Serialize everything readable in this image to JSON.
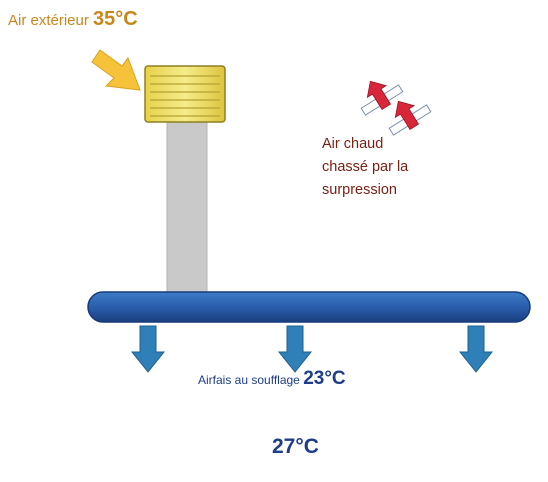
{
  "labels": {
    "outside_air": "Air extérieur",
    "outside_temp": "35°C",
    "hot_air_line1": "Air chaud",
    "hot_air_line2": "chassé par la",
    "hot_air_line3": "surpression",
    "supply_air": "Airfais au  soufflage",
    "supply_temp": "23°C",
    "inside_temp": "27°C"
  },
  "colors": {
    "roof_hot": "#e8321e",
    "mid_warm": "#f7c21a",
    "cool_top": "#7fd3d0",
    "cool_blue": "#2fb4ea",
    "floor_white": "#ffffff",
    "duct_blue": "#2a5eac",
    "arrow_blue": "#2f80b8",
    "unit_yellow": "#f0e36a",
    "chimney_gray": "#c9c9c9",
    "vent_red": "#d8273a"
  },
  "icons": {
    "outside_unit": "air-handler-unit-icon",
    "intake_arrow": "yellow-arrow-icon",
    "roof_vents": "double-arrow-vent-icon",
    "supply_arrows": "down-arrow-icon"
  }
}
